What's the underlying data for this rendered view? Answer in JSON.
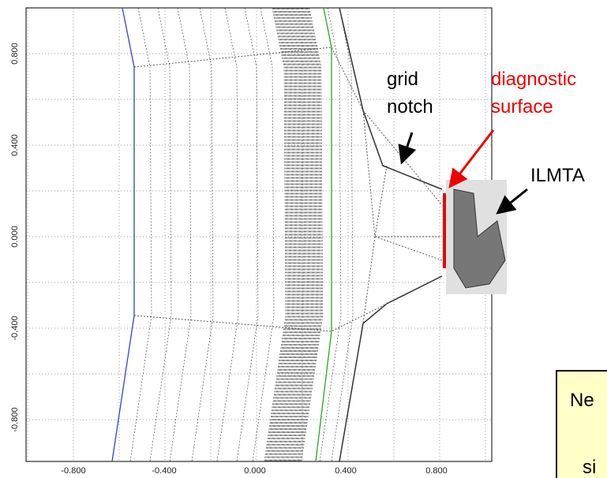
{
  "x_axis": {
    "ticks": [
      "-0.800",
      "-0.400",
      "0.000",
      "0.400",
      "0.800"
    ]
  },
  "y_axis": {
    "ticks": [
      "0.800",
      "0.400",
      "0.000",
      "-0.400",
      "-0.800"
    ]
  },
  "annotations": {
    "grid_notch": [
      "grid",
      "notch"
    ],
    "diagnostic_surface": [
      "diagnostic",
      "surface"
    ],
    "ilmta": "ILMTA"
  },
  "note_box": [
    "Ne",
    "si"
  ]
}
